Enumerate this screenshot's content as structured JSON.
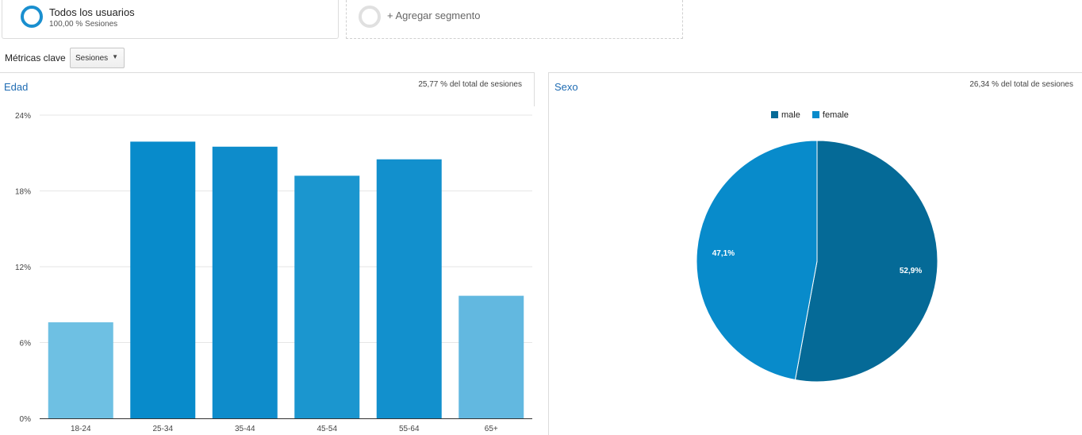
{
  "segments": {
    "active": {
      "title": "Todos los usuarios",
      "subtitle": "100,00 % Sesiones",
      "ring_color": "#1a8fcf"
    },
    "add": {
      "label": "+ Agregar segmento"
    }
  },
  "metrics": {
    "label": "Métricas clave",
    "selected": "Sesiones"
  },
  "age_panel": {
    "title": "Edad",
    "note": "25,77 % del total de sesiones"
  },
  "sex_panel": {
    "title": "Sexo",
    "note": "26,34 % del total de sesiones"
  },
  "chart_data": [
    {
      "type": "bar",
      "title": "Edad",
      "categories": [
        "18-24",
        "25-34",
        "35-44",
        "45-54",
        "55-64",
        "65+"
      ],
      "values": [
        7.6,
        21.9,
        21.5,
        19.2,
        20.5,
        9.7
      ],
      "colors": [
        "#6ec0e3",
        "#088bcb",
        "#0e8ccb",
        "#1b96cf",
        "#1290cd",
        "#62b8e0"
      ],
      "y_ticks": [
        "0%",
        "6%",
        "12%",
        "18%",
        "24%"
      ],
      "ylim": [
        0,
        24
      ],
      "grid": true
    },
    {
      "type": "pie",
      "title": "Sexo",
      "labels": [
        "male",
        "female"
      ],
      "values": [
        52.9,
        47.1
      ],
      "value_labels": [
        "52,9%",
        "47,1%"
      ],
      "colors": [
        "#056a97",
        "#088bcb"
      ],
      "legend": "top"
    }
  ]
}
